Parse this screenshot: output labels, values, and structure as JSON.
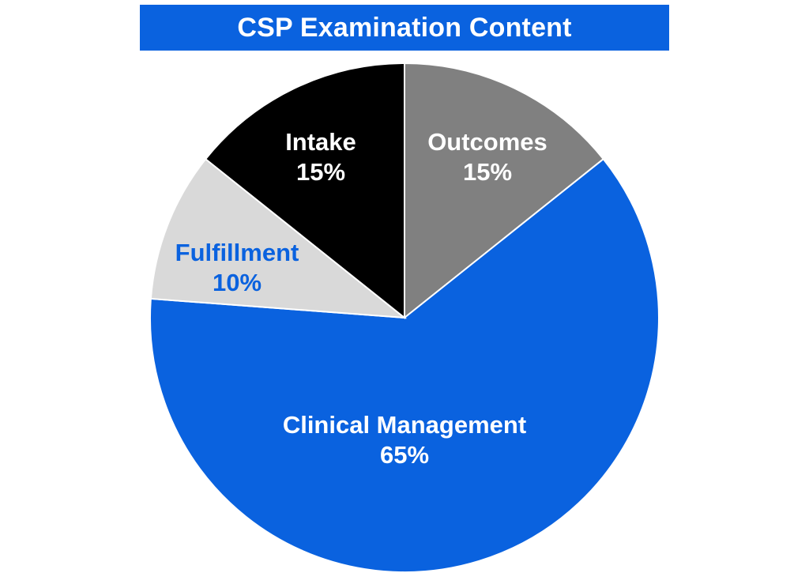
{
  "chart_data": {
    "type": "pie",
    "title": "CSP Examination Content",
    "slices": [
      {
        "label": "Outcomes",
        "value": 15,
        "display": "15%",
        "color": "#808080",
        "label_color": "#ffffff"
      },
      {
        "label": "Clinical Management",
        "value": 65,
        "display": "65%",
        "color": "#0a62df",
        "label_color": "#ffffff"
      },
      {
        "label": "Fulfillment",
        "value": 10,
        "display": "10%",
        "color": "#d9d9d9",
        "label_color": "#0a62df"
      },
      {
        "label": "Intake",
        "value": 15,
        "display": "15%",
        "color": "#000000",
        "label_color": "#ffffff"
      }
    ],
    "start_angle_deg": 0,
    "direction": "clockwise",
    "legend": "none",
    "colors": {
      "title_background": "#0a62df",
      "title_text": "#ffffff"
    }
  }
}
